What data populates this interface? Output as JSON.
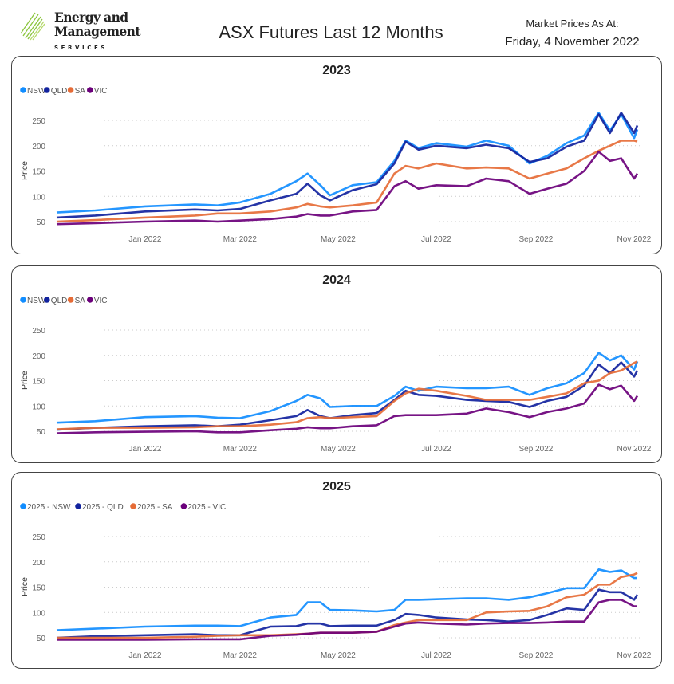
{
  "header": {
    "logo": {
      "line1": "Energy and",
      "line2": "Management",
      "line3": "SERVICES"
    },
    "title": "ASX Futures Last 12 Months",
    "as_at_label": "Market Prices As At:",
    "as_at_date": "Friday, 4 November 2022"
  },
  "colors": {
    "NSW": "#118DFF",
    "QLD": "#12239E",
    "SA": "#E66C37",
    "VIC": "#6B007B",
    "logo_green": "#8CC63F"
  },
  "chart_data": [
    {
      "type": "line",
      "title": "2023",
      "ylabel": "Price",
      "yticks": [
        50,
        100,
        150,
        200,
        250
      ],
      "ylim": [
        40,
        265
      ],
      "xticks": [
        "Jan 2022",
        "Mar 2022",
        "May 2022",
        "Jul 2022",
        "Sep 2022",
        "Nov 2022"
      ],
      "xtick_dates": [
        "2022-01-01",
        "2022-03-01",
        "2022-05-01",
        "2022-07-01",
        "2022-09-01",
        "2022-11-01"
      ],
      "xlim": [
        "2021-11-07",
        "2022-11-04"
      ],
      "grid": "horizontal-dotted",
      "legend": "top-left",
      "x": [
        "2021-11-07",
        "2021-12-01",
        "2022-01-01",
        "2022-02-01",
        "2022-02-15",
        "2022-03-01",
        "2022-03-20",
        "2022-04-05",
        "2022-04-12",
        "2022-04-20",
        "2022-04-26",
        "2022-05-10",
        "2022-05-25",
        "2022-06-05",
        "2022-06-12",
        "2022-06-20",
        "2022-07-01",
        "2022-07-20",
        "2022-08-01",
        "2022-08-15",
        "2022-08-28",
        "2022-09-08",
        "2022-09-20",
        "2022-10-01",
        "2022-10-10",
        "2022-10-17",
        "2022-10-24",
        "2022-11-01",
        "2022-11-03"
      ],
      "series": [
        {
          "name": "NSW",
          "values": [
            68,
            72,
            80,
            84,
            82,
            88,
            105,
            130,
            145,
            122,
            102,
            122,
            128,
            170,
            210,
            195,
            205,
            198,
            210,
            200,
            165,
            180,
            205,
            220,
            265,
            230,
            262,
            215,
            232
          ]
        },
        {
          "name": "QLD",
          "values": [
            58,
            62,
            70,
            74,
            72,
            75,
            92,
            105,
            125,
            102,
            92,
            112,
            124,
            165,
            208,
            192,
            200,
            195,
            202,
            195,
            168,
            175,
            198,
            210,
            262,
            225,
            265,
            225,
            240
          ]
        },
        {
          "name": "SA",
          "values": [
            50,
            53,
            58,
            62,
            66,
            66,
            70,
            78,
            85,
            80,
            78,
            82,
            88,
            145,
            160,
            155,
            165,
            155,
            157,
            155,
            135,
            145,
            155,
            175,
            190,
            200,
            210,
            210,
            208
          ]
        },
        {
          "name": "VIC",
          "values": [
            45,
            47,
            50,
            52,
            50,
            52,
            55,
            60,
            65,
            62,
            62,
            70,
            73,
            120,
            130,
            115,
            122,
            120,
            135,
            130,
            105,
            115,
            125,
            150,
            188,
            170,
            175,
            135,
            145
          ]
        }
      ]
    },
    {
      "type": "line",
      "title": "2024",
      "ylabel": "Price",
      "yticks": [
        50,
        100,
        150,
        200,
        250
      ],
      "ylim": [
        40,
        265
      ],
      "xticks": [
        "Jan 2022",
        "Mar 2022",
        "May 2022",
        "Jul 2022",
        "Sep 2022",
        "Nov 2022"
      ],
      "xtick_dates": [
        "2022-01-01",
        "2022-03-01",
        "2022-05-01",
        "2022-07-01",
        "2022-09-01",
        "2022-11-01"
      ],
      "xlim": [
        "2021-11-07",
        "2022-11-04"
      ],
      "grid": "horizontal-dotted",
      "legend": "top-left",
      "x": [
        "2021-11-07",
        "2021-12-01",
        "2022-01-01",
        "2022-02-01",
        "2022-02-15",
        "2022-03-01",
        "2022-03-20",
        "2022-04-05",
        "2022-04-12",
        "2022-04-20",
        "2022-04-26",
        "2022-05-10",
        "2022-05-25",
        "2022-06-05",
        "2022-06-12",
        "2022-06-20",
        "2022-07-01",
        "2022-07-20",
        "2022-08-01",
        "2022-08-15",
        "2022-08-28",
        "2022-09-08",
        "2022-09-20",
        "2022-10-01",
        "2022-10-10",
        "2022-10-17",
        "2022-10-24",
        "2022-11-01",
        "2022-11-03"
      ],
      "series": [
        {
          "name": "NSW",
          "values": [
            67,
            70,
            78,
            80,
            77,
            76,
            90,
            110,
            122,
            115,
            98,
            100,
            100,
            120,
            138,
            130,
            138,
            135,
            135,
            138,
            122,
            135,
            145,
            165,
            205,
            190,
            200,
            172,
            188
          ]
        },
        {
          "name": "QLD",
          "values": [
            53,
            57,
            60,
            62,
            60,
            63,
            72,
            80,
            92,
            80,
            76,
            82,
            86,
            112,
            130,
            122,
            120,
            112,
            110,
            108,
            98,
            110,
            118,
            140,
            182,
            165,
            186,
            158,
            170
          ]
        },
        {
          "name": "SA",
          "values": [
            54,
            57,
            57,
            58,
            60,
            60,
            63,
            68,
            76,
            78,
            76,
            78,
            80,
            110,
            125,
            134,
            130,
            120,
            112,
            112,
            112,
            118,
            125,
            145,
            150,
            165,
            170,
            185,
            188
          ]
        },
        {
          "name": "VIC",
          "values": [
            46,
            48,
            49,
            50,
            48,
            48,
            52,
            55,
            58,
            56,
            56,
            60,
            62,
            80,
            82,
            82,
            82,
            85,
            95,
            88,
            78,
            88,
            95,
            105,
            142,
            133,
            140,
            110,
            120
          ]
        }
      ]
    },
    {
      "type": "line",
      "title": "2025",
      "ylabel": "Price",
      "yticks": [
        50,
        100,
        150,
        200,
        250
      ],
      "ylim": [
        40,
        265
      ],
      "xticks": [
        "Jan 2022",
        "Mar 2022",
        "May 2022",
        "Jul 2022",
        "Sep 2022",
        "Nov 2022"
      ],
      "xtick_dates": [
        "2022-01-01",
        "2022-03-01",
        "2022-05-01",
        "2022-07-01",
        "2022-09-01",
        "2022-11-01"
      ],
      "xlim": [
        "2021-11-07",
        "2022-11-04"
      ],
      "grid": "horizontal-dotted",
      "legend": "top-left",
      "x": [
        "2021-11-07",
        "2021-12-01",
        "2022-01-01",
        "2022-02-01",
        "2022-02-15",
        "2022-03-01",
        "2022-03-20",
        "2022-04-05",
        "2022-04-12",
        "2022-04-20",
        "2022-04-26",
        "2022-05-10",
        "2022-05-25",
        "2022-06-05",
        "2022-06-12",
        "2022-06-20",
        "2022-07-01",
        "2022-07-20",
        "2022-08-01",
        "2022-08-15",
        "2022-08-28",
        "2022-09-08",
        "2022-09-20",
        "2022-10-01",
        "2022-10-10",
        "2022-10-17",
        "2022-10-24",
        "2022-11-01",
        "2022-11-03"
      ],
      "series": [
        {
          "name": "2025 - NSW",
          "values": [
            65,
            68,
            72,
            74,
            74,
            73,
            90,
            95,
            120,
            120,
            105,
            104,
            102,
            105,
            125,
            125,
            126,
            128,
            128,
            125,
            130,
            138,
            148,
            148,
            185,
            180,
            183,
            168,
            168
          ]
        },
        {
          "name": "2025 - QLD",
          "values": [
            50,
            53,
            55,
            57,
            55,
            55,
            72,
            73,
            78,
            78,
            73,
            74,
            74,
            85,
            97,
            95,
            90,
            86,
            85,
            82,
            85,
            95,
            108,
            105,
            145,
            140,
            140,
            125,
            135
          ]
        },
        {
          "name": "2025 - SA",
          "values": [
            50,
            50,
            50,
            52,
            54,
            55,
            55,
            57,
            58,
            60,
            60,
            60,
            62,
            75,
            80,
            85,
            85,
            85,
            100,
            102,
            103,
            112,
            130,
            135,
            155,
            155,
            170,
            175,
            178
          ]
        },
        {
          "name": "2025 - VIC",
          "values": [
            46,
            46,
            46,
            47,
            47,
            47,
            54,
            56,
            58,
            60,
            60,
            60,
            62,
            72,
            78,
            80,
            78,
            76,
            78,
            79,
            79,
            80,
            82,
            82,
            120,
            125,
            125,
            112,
            112
          ]
        }
      ]
    }
  ]
}
